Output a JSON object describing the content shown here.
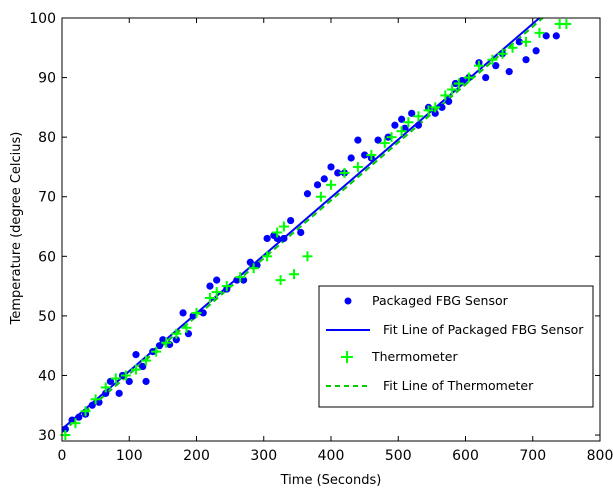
{
  "chart_data": {
    "type": "scatter",
    "title": "",
    "xlabel": "Time (Seconds)",
    "ylabel": "Temperature (degree Celcius)",
    "xlim": [
      0,
      800
    ],
    "ylim": [
      29,
      100
    ],
    "xticks": [
      0,
      100,
      200,
      300,
      400,
      500,
      600,
      700,
      800
    ],
    "yticks": [
      30,
      40,
      50,
      60,
      70,
      80,
      90,
      100
    ],
    "grid": false,
    "legend_position": "lower-right",
    "series": [
      {
        "name": "Packaged FBG Sensor",
        "kind": "scatter",
        "marker": "dot",
        "color": "#0000ff",
        "points": [
          [
            5,
            31
          ],
          [
            15,
            32.5
          ],
          [
            25,
            33
          ],
          [
            35,
            33.5
          ],
          [
            45,
            35
          ],
          [
            55,
            35.5
          ],
          [
            65,
            37
          ],
          [
            72,
            39
          ],
          [
            85,
            37
          ],
          [
            90,
            40
          ],
          [
            100,
            39
          ],
          [
            110,
            43.5
          ],
          [
            120,
            41.5
          ],
          [
            125,
            39
          ],
          [
            135,
            44
          ],
          [
            145,
            45
          ],
          [
            150,
            46
          ],
          [
            160,
            45.2
          ],
          [
            170,
            46
          ],
          [
            180,
            50.5
          ],
          [
            188,
            47
          ],
          [
            195,
            50
          ],
          [
            210,
            50.5
          ],
          [
            220,
            55
          ],
          [
            230,
            56
          ],
          [
            245,
            54.5
          ],
          [
            260,
            56
          ],
          [
            270,
            56
          ],
          [
            280,
            59
          ],
          [
            290,
            58.5
          ],
          [
            305,
            63
          ],
          [
            315,
            63.5
          ],
          [
            320,
            63
          ],
          [
            330,
            63
          ],
          [
            340,
            66
          ],
          [
            355,
            64
          ],
          [
            365,
            70.5
          ],
          [
            380,
            72
          ],
          [
            390,
            73
          ],
          [
            400,
            75
          ],
          [
            410,
            74
          ],
          [
            420,
            74
          ],
          [
            430,
            76.5
          ],
          [
            440,
            79.5
          ],
          [
            450,
            77
          ],
          [
            460,
            76.5
          ],
          [
            470,
            79.5
          ],
          [
            485,
            80
          ],
          [
            495,
            82
          ],
          [
            505,
            83
          ],
          [
            510,
            81.5
          ],
          [
            520,
            84
          ],
          [
            530,
            82
          ],
          [
            545,
            85
          ],
          [
            555,
            84
          ],
          [
            565,
            85
          ],
          [
            575,
            86
          ],
          [
            585,
            89
          ],
          [
            595,
            89.5
          ],
          [
            605,
            90
          ],
          [
            620,
            92.5
          ],
          [
            630,
            90
          ],
          [
            645,
            92
          ],
          [
            655,
            94
          ],
          [
            665,
            91
          ],
          [
            680,
            96
          ],
          [
            690,
            93
          ],
          [
            705,
            94.5
          ],
          [
            720,
            97
          ],
          [
            735,
            97
          ]
        ]
      },
      {
        "name": "Fit Line of Packaged FBG Sensor",
        "kind": "line",
        "style": "solid",
        "color": "#0000ff",
        "points": [
          [
            0,
            31
          ],
          [
            715,
            100.5
          ]
        ]
      },
      {
        "name": "Thermometer",
        "kind": "scatter",
        "marker": "plus",
        "color": "#00ff00",
        "points": [
          [
            5,
            30
          ],
          [
            20,
            32
          ],
          [
            35,
            34
          ],
          [
            50,
            36
          ],
          [
            65,
            38
          ],
          [
            80,
            39.5
          ],
          [
            95,
            40
          ],
          [
            110,
            41
          ],
          [
            125,
            42.5
          ],
          [
            140,
            44
          ],
          [
            155,
            45.5
          ],
          [
            170,
            47
          ],
          [
            185,
            48
          ],
          [
            200,
            50.5
          ],
          [
            220,
            53
          ],
          [
            230,
            54
          ],
          [
            245,
            55
          ],
          [
            265,
            56.5
          ],
          [
            285,
            58
          ],
          [
            305,
            60
          ],
          [
            320,
            64
          ],
          [
            330,
            65
          ],
          [
            325,
            56
          ],
          [
            345,
            57
          ],
          [
            365,
            60
          ],
          [
            385,
            70
          ],
          [
            400,
            72
          ],
          [
            420,
            74
          ],
          [
            440,
            75
          ],
          [
            460,
            77
          ],
          [
            480,
            79
          ],
          [
            490,
            80
          ],
          [
            505,
            81
          ],
          [
            515,
            82.5
          ],
          [
            530,
            83.5
          ],
          [
            545,
            84.5
          ],
          [
            555,
            85
          ],
          [
            570,
            87
          ],
          [
            580,
            88
          ],
          [
            590,
            89
          ],
          [
            605,
            90
          ],
          [
            620,
            92
          ],
          [
            640,
            93
          ],
          [
            655,
            94
          ],
          [
            670,
            95
          ],
          [
            690,
            96
          ],
          [
            710,
            97.5
          ],
          [
            740,
            99
          ],
          [
            750,
            99
          ]
        ]
      },
      {
        "name": "Fit Line of Thermometer",
        "kind": "line",
        "style": "dashed",
        "color": "#00cc00",
        "points": [
          [
            0,
            30.5
          ],
          [
            720,
            100.5
          ]
        ]
      }
    ]
  }
}
